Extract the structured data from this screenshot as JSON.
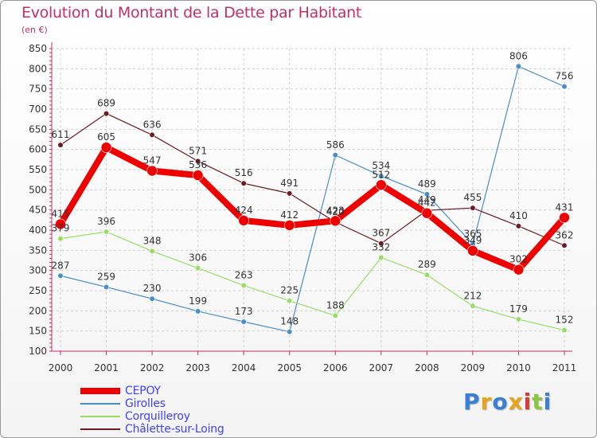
{
  "title": "Evolution du Montant de la Dette par Habitant",
  "unit_label": "(en €)",
  "logo_text": "Proxiti",
  "colors": {
    "title": "#c0306a",
    "legend_text": "#4040ff",
    "grid": "#d0d0d0",
    "axis": "#c0306a"
  },
  "chart_data": {
    "type": "line",
    "title": "Evolution du Montant de la Dette par Habitant",
    "ylabel": "(en €)",
    "xlabel": "",
    "x": [
      "2000",
      "2001",
      "2002",
      "2003",
      "2004",
      "2005",
      "2006",
      "2007",
      "2008",
      "2009",
      "2010",
      "2011"
    ],
    "ylim": [
      100,
      850
    ],
    "yticks": [
      100,
      150,
      200,
      250,
      300,
      350,
      400,
      450,
      500,
      550,
      600,
      650,
      700,
      750,
      800,
      850
    ],
    "grid": true,
    "legend_position": "bottom-left",
    "series": [
      {
        "name": "Girolles",
        "color": "#4a8ec8",
        "values": [
          287,
          259,
          230,
          199,
          173,
          148,
          586,
          534,
          489,
          365,
          806,
          756
        ]
      },
      {
        "name": "Corquilleroy",
        "color": "#99dd66",
        "values": [
          379,
          396,
          348,
          306,
          263,
          225,
          188,
          332,
          289,
          212,
          179,
          152
        ]
      },
      {
        "name": "Châlette-sur-Loing",
        "color": "#6b1c24",
        "values": [
          611,
          689,
          636,
          571,
          516,
          491,
          420,
          367,
          449,
          455,
          410,
          362
        ]
      },
      {
        "name": "CEPOY",
        "color": "#ee0000",
        "values": [
          415,
          605,
          547,
          536,
          424,
          412,
          423,
          512,
          442,
          349,
          302,
          431
        ]
      }
    ]
  }
}
